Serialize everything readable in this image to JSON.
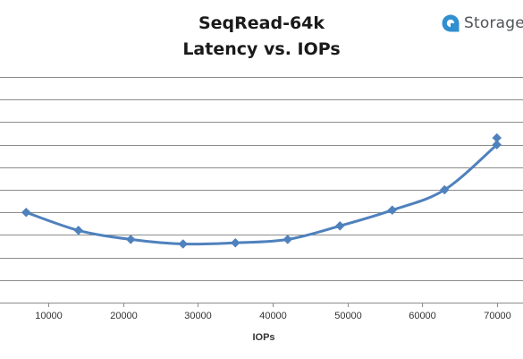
{
  "brand": {
    "name": "Storage",
    "icon": "storage-review-logo-icon",
    "color": "#2f8fd0"
  },
  "chart_data": {
    "type": "line",
    "title": "SeqRead-64k",
    "subtitle": "Latency vs. IOPs",
    "xlabel": "IOPs",
    "ylabel": "",
    "x_ticks": [
      10000,
      20000,
      30000,
      40000,
      50000,
      60000,
      70000
    ],
    "xlim": [
      3500,
      73500
    ],
    "ylim": [
      0,
      10
    ],
    "y_gridlines": [
      1,
      2,
      3,
      4,
      5,
      6,
      7,
      8,
      9
    ],
    "y_tick_labels_visible": false,
    "grid": true,
    "legend": "none",
    "series": [
      {
        "color": "#4f81bd",
        "marker": "diamond",
        "smooth": true,
        "points": [
          {
            "x": 7000,
            "y": 4.0
          },
          {
            "x": 14000,
            "y": 3.2
          },
          {
            "x": 21000,
            "y": 2.8
          },
          {
            "x": 28000,
            "y": 2.6
          },
          {
            "x": 35000,
            "y": 2.65
          },
          {
            "x": 42000,
            "y": 2.8
          },
          {
            "x": 49000,
            "y": 3.4
          },
          {
            "x": 56000,
            "y": 4.1
          },
          {
            "x": 63000,
            "y": 5.0
          },
          {
            "x": 70000,
            "y": 7.0
          },
          {
            "x": 70000,
            "y": 7.3
          }
        ]
      }
    ]
  }
}
